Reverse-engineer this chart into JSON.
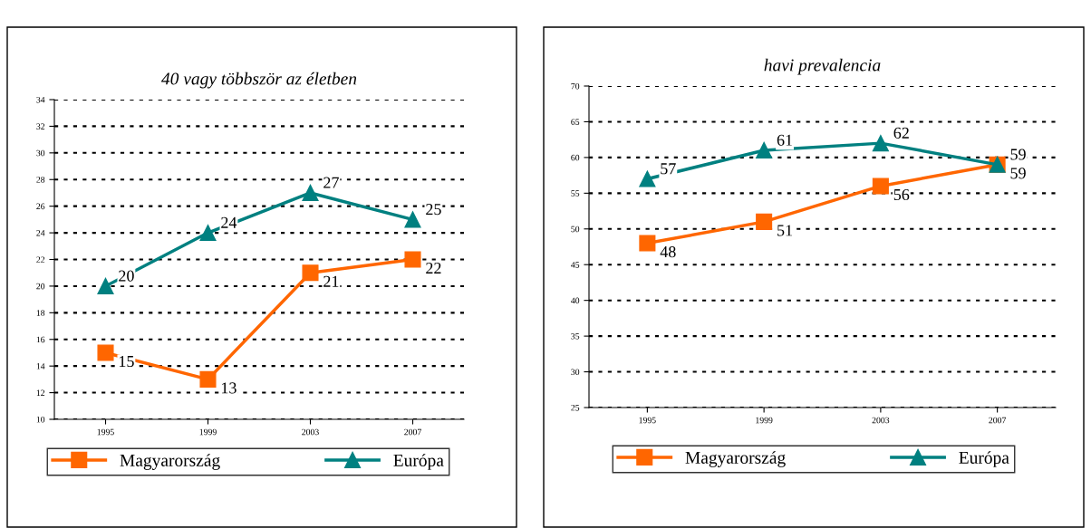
{
  "chart_data": [
    {
      "type": "line",
      "title": "40 vagy többször az életben",
      "categories": [
        "1995",
        "1999",
        "2003",
        "2007"
      ],
      "series": [
        {
          "name": "Magyarország",
          "color": "#ff6600",
          "marker": "square",
          "values": [
            15,
            13,
            21,
            22
          ]
        },
        {
          "name": "Európa",
          "color": "#008080",
          "marker": "triangle",
          "values": [
            20,
            24,
            27,
            25
          ]
        }
      ],
      "ylim": [
        10,
        34
      ],
      "yticks": [
        10,
        12,
        14,
        16,
        18,
        20,
        22,
        24,
        26,
        28,
        30,
        32,
        34
      ],
      "grid": "y",
      "legend": "bottom",
      "data_labels": true
    },
    {
      "type": "line",
      "title": "havi prevalencia",
      "categories": [
        "1995",
        "1999",
        "2003",
        "2007"
      ],
      "series": [
        {
          "name": "Magyarország",
          "color": "#ff6600",
          "marker": "square",
          "values": [
            48,
            51,
            56,
            59
          ]
        },
        {
          "name": "Európa",
          "color": "#008080",
          "marker": "triangle",
          "values": [
            57,
            61,
            62,
            59
          ]
        }
      ],
      "ylim": [
        25,
        70
      ],
      "yticks": [
        25,
        30,
        35,
        40,
        45,
        50,
        55,
        60,
        65,
        70
      ],
      "grid": "y",
      "legend": "bottom",
      "data_labels": true
    }
  ]
}
